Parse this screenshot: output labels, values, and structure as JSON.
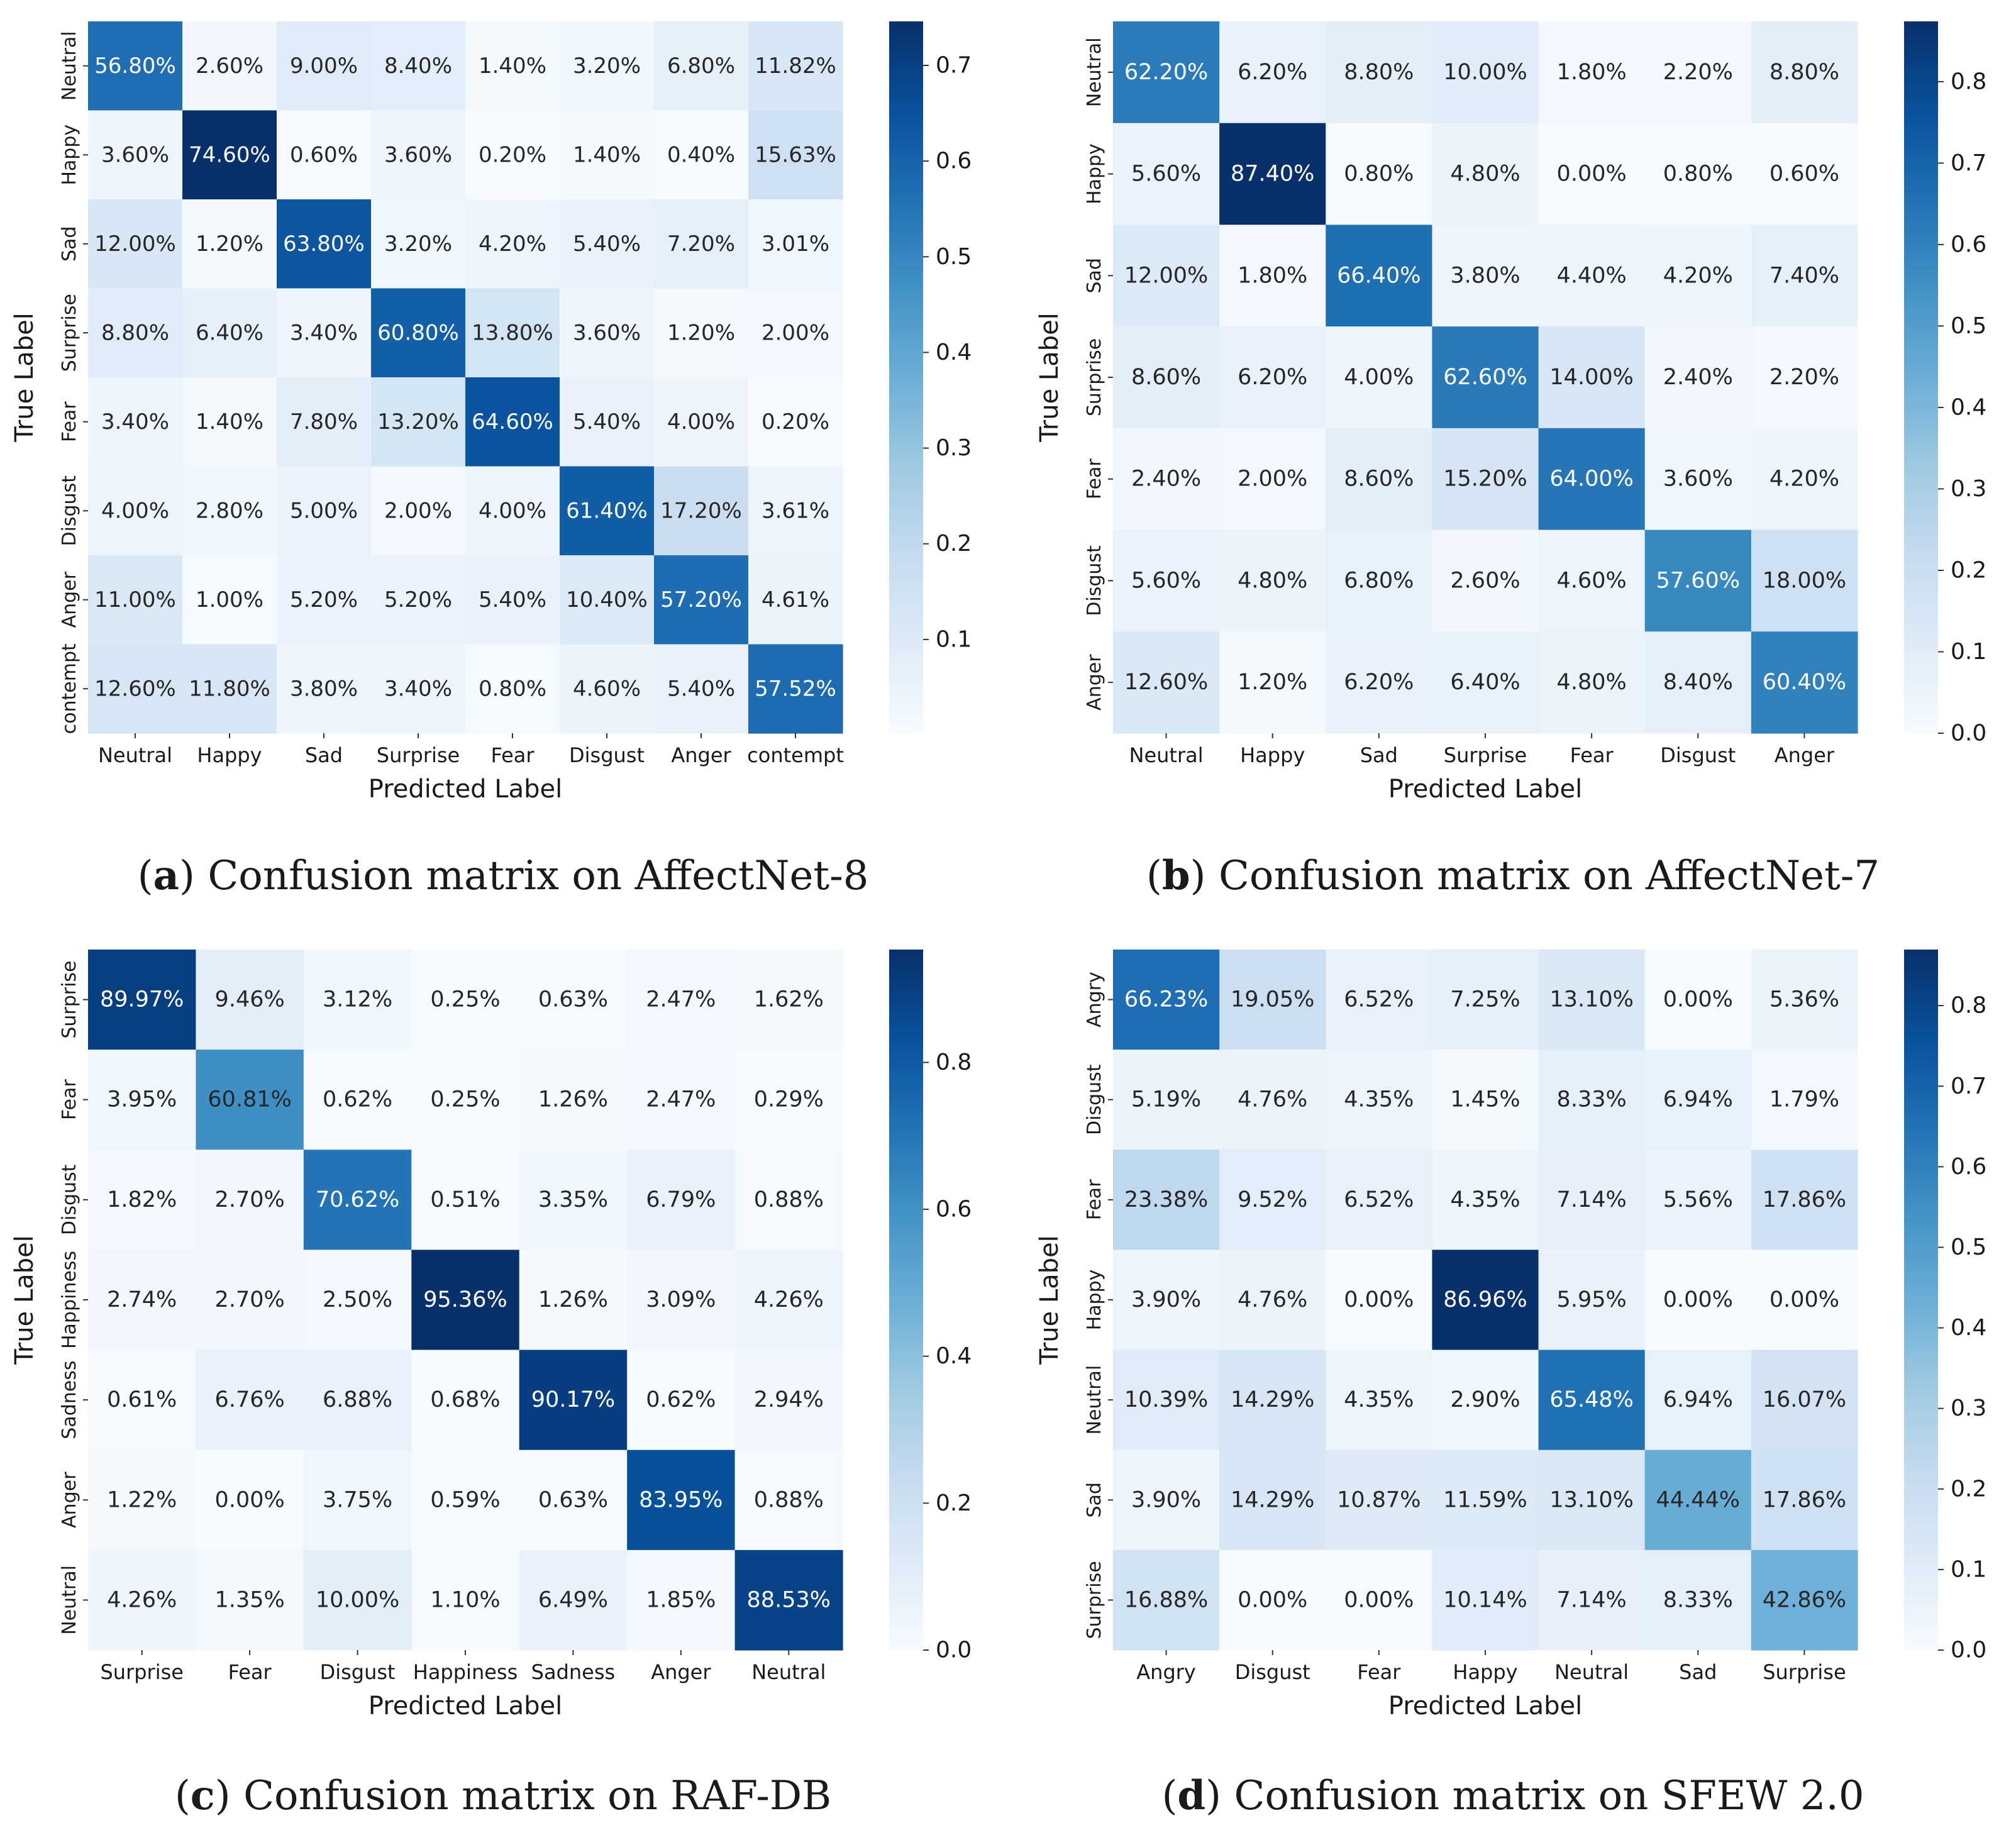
{
  "figure": {
    "colormap": "Blues",
    "colors": {
      "low": "#f7fbff",
      "high": "#08306b",
      "text_dark": "#262626",
      "text_light": "#ffffff"
    }
  },
  "chart_data": [
    {
      "type": "heatmap",
      "caption_letter": "a",
      "caption_text": " Confusion matrix on AffectNet-8",
      "xlabel": "Predicted Label",
      "ylabel": "True Label",
      "x_categories": [
        "Neutral",
        "Happy",
        "Sad",
        "Surprise",
        "Fear",
        "Disgust",
        "Anger",
        "contempt"
      ],
      "y_categories": [
        "Neutral",
        "Happy",
        "Sad",
        "Surprise",
        "Fear",
        "Disgust",
        "Anger",
        "contempt"
      ],
      "values": [
        [
          56.8,
          2.6,
          9.0,
          8.4,
          1.4,
          3.2,
          6.8,
          11.82
        ],
        [
          3.6,
          74.6,
          0.6,
          3.6,
          0.2,
          1.4,
          0.4,
          15.63
        ],
        [
          12.0,
          1.2,
          63.8,
          3.2,
          4.2,
          5.4,
          7.2,
          3.01
        ],
        [
          8.8,
          6.4,
          3.4,
          60.8,
          13.8,
          3.6,
          1.2,
          2.0
        ],
        [
          3.4,
          1.4,
          7.8,
          13.2,
          64.6,
          5.4,
          4.0,
          0.2
        ],
        [
          4.0,
          2.8,
          5.0,
          2.0,
          4.0,
          61.4,
          17.2,
          3.61
        ],
        [
          11.0,
          1.0,
          5.2,
          5.2,
          5.4,
          10.4,
          57.2,
          4.61
        ],
        [
          12.6,
          11.8,
          3.8,
          3.4,
          0.8,
          4.6,
          5.4,
          57.52
        ]
      ],
      "labels": [
        [
          "56.80%",
          "2.60%",
          "9.00%",
          "8.40%",
          "1.40%",
          "3.20%",
          "6.80%",
          "11.82%"
        ],
        [
          "3.60%",
          "74.60%",
          "0.60%",
          "3.60%",
          "0.20%",
          "1.40%",
          "0.40%",
          "15.63%"
        ],
        [
          "12.00%",
          "1.20%",
          "63.80%",
          "3.20%",
          "4.20%",
          "5.40%",
          "7.20%",
          "3.01%"
        ],
        [
          "8.80%",
          "6.40%",
          "3.40%",
          "60.80%",
          "13.80%",
          "3.60%",
          "1.20%",
          "2.00%"
        ],
        [
          "3.40%",
          "1.40%",
          "7.80%",
          "13.20%",
          "64.60%",
          "5.40%",
          "4.00%",
          "0.20%"
        ],
        [
          "4.00%",
          "2.80%",
          "5.00%",
          "2.00%",
          "4.00%",
          "61.40%",
          "17.20%",
          "3.61%"
        ],
        [
          "11.00%",
          "1.00%",
          "5.20%",
          "5.20%",
          "5.40%",
          "10.40%",
          "57.20%",
          "4.61%"
        ],
        [
          "12.60%",
          "11.80%",
          "3.80%",
          "3.40%",
          "0.80%",
          "4.60%",
          "5.40%",
          "57.52%"
        ]
      ],
      "color_range": [
        0.002,
        0.746
      ],
      "colorbar_ticks": [
        0.1,
        0.2,
        0.3,
        0.4,
        0.5,
        0.6,
        0.7
      ],
      "colorbar_tick_labels": [
        "0.1",
        "0.2",
        "0.3",
        "0.4",
        "0.5",
        "0.6",
        "0.7"
      ]
    },
    {
      "type": "heatmap",
      "caption_letter": "b",
      "caption_text": " Confusion matrix on AffectNet-7",
      "xlabel": "Predicted Label",
      "ylabel": "True Label",
      "x_categories": [
        "Neutral",
        "Happy",
        "Sad",
        "Surprise",
        "Fear",
        "Disgust",
        "Anger"
      ],
      "y_categories": [
        "Neutral",
        "Happy",
        "Sad",
        "Surprise",
        "Fear",
        "Disgust",
        "Anger"
      ],
      "values": [
        [
          62.2,
          6.2,
          8.8,
          10.0,
          1.8,
          2.2,
          8.8
        ],
        [
          5.6,
          87.4,
          0.8,
          4.8,
          0.0,
          0.8,
          0.6
        ],
        [
          12.0,
          1.8,
          66.4,
          3.8,
          4.4,
          4.2,
          7.4
        ],
        [
          8.6,
          6.2,
          4.0,
          62.6,
          14.0,
          2.4,
          2.2
        ],
        [
          2.4,
          2.0,
          8.6,
          15.2,
          64.0,
          3.6,
          4.2
        ],
        [
          5.6,
          4.8,
          6.8,
          2.6,
          4.6,
          57.6,
          18.0
        ],
        [
          12.6,
          1.2,
          6.2,
          6.4,
          4.8,
          8.4,
          60.4
        ]
      ],
      "labels": [
        [
          "62.20%",
          "6.20%",
          "8.80%",
          "10.00%",
          "1.80%",
          "2.20%",
          "8.80%"
        ],
        [
          "5.60%",
          "87.40%",
          "0.80%",
          "4.80%",
          "0.00%",
          "0.80%",
          "0.60%"
        ],
        [
          "12.00%",
          "1.80%",
          "66.40%",
          "3.80%",
          "4.40%",
          "4.20%",
          "7.40%"
        ],
        [
          "8.60%",
          "6.20%",
          "4.00%",
          "62.60%",
          "14.00%",
          "2.40%",
          "2.20%"
        ],
        [
          "2.40%",
          "2.00%",
          "8.60%",
          "15.20%",
          "64.00%",
          "3.60%",
          "4.20%"
        ],
        [
          "5.60%",
          "4.80%",
          "6.80%",
          "2.60%",
          "4.60%",
          "57.60%",
          "18.00%"
        ],
        [
          "12.60%",
          "1.20%",
          "6.20%",
          "6.40%",
          "4.80%",
          "8.40%",
          "60.40%"
        ]
      ],
      "color_range": [
        0.0,
        0.874
      ],
      "colorbar_ticks": [
        0.0,
        0.1,
        0.2,
        0.3,
        0.4,
        0.5,
        0.6,
        0.7,
        0.8
      ],
      "colorbar_tick_labels": [
        "0.0",
        "0.1",
        "0.2",
        "0.3",
        "0.4",
        "0.5",
        "0.6",
        "0.7",
        "0.8"
      ]
    },
    {
      "type": "heatmap",
      "caption_letter": "c",
      "caption_text": " Confusion matrix on RAF-DB",
      "xlabel": "Predicted Label",
      "ylabel": "True Label",
      "x_categories": [
        "Surprise",
        "Fear",
        "Disgust",
        "Happiness",
        "Sadness",
        "Anger",
        "Neutral"
      ],
      "y_categories": [
        "Surprise",
        "Fear",
        "Disgust",
        "Happiness",
        "Sadness",
        "Anger",
        "Neutral"
      ],
      "values": [
        [
          89.97,
          9.46,
          3.12,
          0.25,
          0.63,
          2.47,
          1.62
        ],
        [
          3.95,
          60.81,
          0.62,
          0.25,
          1.26,
          2.47,
          0.29
        ],
        [
          1.82,
          2.7,
          70.62,
          0.51,
          3.35,
          6.79,
          0.88
        ],
        [
          2.74,
          2.7,
          2.5,
          95.36,
          1.26,
          3.09,
          4.26
        ],
        [
          0.61,
          6.76,
          6.88,
          0.68,
          90.17,
          0.62,
          2.94
        ],
        [
          1.22,
          0.0,
          3.75,
          0.59,
          0.63,
          83.95,
          0.88
        ],
        [
          4.26,
          1.35,
          10.0,
          1.1,
          6.49,
          1.85,
          88.53
        ]
      ],
      "labels": [
        [
          "89.97%",
          "9.46%",
          "3.12%",
          "0.25%",
          "0.63%",
          "2.47%",
          "1.62%"
        ],
        [
          "3.95%",
          "60.81%",
          "0.62%",
          "0.25%",
          "1.26%",
          "2.47%",
          "0.29%"
        ],
        [
          "1.82%",
          "2.70%",
          "70.62%",
          "0.51%",
          "3.35%",
          "6.79%",
          "0.88%"
        ],
        [
          "2.74%",
          "2.70%",
          "2.50%",
          "95.36%",
          "1.26%",
          "3.09%",
          "4.26%"
        ],
        [
          "0.61%",
          "6.76%",
          "6.88%",
          "0.68%",
          "90.17%",
          "0.62%",
          "2.94%"
        ],
        [
          "1.22%",
          "0.00%",
          "3.75%",
          "0.59%",
          "0.63%",
          "83.95%",
          "0.88%"
        ],
        [
          "4.26%",
          "1.35%",
          "10.00%",
          "1.10%",
          "6.49%",
          "1.85%",
          "88.53%"
        ]
      ],
      "color_range": [
        0.0,
        0.9536
      ],
      "colorbar_ticks": [
        0.0,
        0.2,
        0.4,
        0.6,
        0.8
      ],
      "colorbar_tick_labels": [
        "0.0",
        "0.2",
        "0.4",
        "0.6",
        "0.8"
      ]
    },
    {
      "type": "heatmap",
      "caption_letter": "d",
      "caption_text": " Confusion matrix on SFEW 2.0",
      "xlabel": "Predicted Label",
      "ylabel": "True Label",
      "x_categories": [
        "Angry",
        "Disgust",
        "Fear",
        "Happy",
        "Neutral",
        "Sad",
        "Surprise"
      ],
      "y_categories": [
        "Angry",
        "Disgust",
        "Fear",
        "Happy",
        "Neutral",
        "Sad",
        "Surprise"
      ],
      "values": [
        [
          66.23,
          19.05,
          6.52,
          7.25,
          13.1,
          0.0,
          5.36
        ],
        [
          5.19,
          4.76,
          4.35,
          1.45,
          8.33,
          6.94,
          1.79
        ],
        [
          23.38,
          9.52,
          6.52,
          4.35,
          7.14,
          5.56,
          17.86
        ],
        [
          3.9,
          4.76,
          0.0,
          86.96,
          5.95,
          0.0,
          0.0
        ],
        [
          10.39,
          14.29,
          4.35,
          2.9,
          65.48,
          6.94,
          16.07
        ],
        [
          3.9,
          14.29,
          10.87,
          11.59,
          13.1,
          44.44,
          17.86
        ],
        [
          16.88,
          0.0,
          0.0,
          10.14,
          7.14,
          8.33,
          42.86
        ]
      ],
      "labels": [
        [
          "66.23%",
          "19.05%",
          "6.52%",
          "7.25%",
          "13.10%",
          "0.00%",
          "5.36%"
        ],
        [
          "5.19%",
          "4.76%",
          "4.35%",
          "1.45%",
          "8.33%",
          "6.94%",
          "1.79%"
        ],
        [
          "23.38%",
          "9.52%",
          "6.52%",
          "4.35%",
          "7.14%",
          "5.56%",
          "17.86%"
        ],
        [
          "3.90%",
          "4.76%",
          "0.00%",
          "86.96%",
          "5.95%",
          "0.00%",
          "0.00%"
        ],
        [
          "10.39%",
          "14.29%",
          "4.35%",
          "2.90%",
          "65.48%",
          "6.94%",
          "16.07%"
        ],
        [
          "3.90%",
          "14.29%",
          "10.87%",
          "11.59%",
          "13.10%",
          "44.44%",
          "17.86%"
        ],
        [
          "16.88%",
          "0.00%",
          "0.00%",
          "10.14%",
          "7.14%",
          "8.33%",
          "42.86%"
        ]
      ],
      "color_range": [
        0.0,
        0.8696
      ],
      "colorbar_ticks": [
        0.0,
        0.1,
        0.2,
        0.3,
        0.4,
        0.5,
        0.6,
        0.7,
        0.8
      ],
      "colorbar_tick_labels": [
        "0.0",
        "0.1",
        "0.2",
        "0.3",
        "0.4",
        "0.5",
        "0.6",
        "0.7",
        "0.8"
      ]
    }
  ]
}
